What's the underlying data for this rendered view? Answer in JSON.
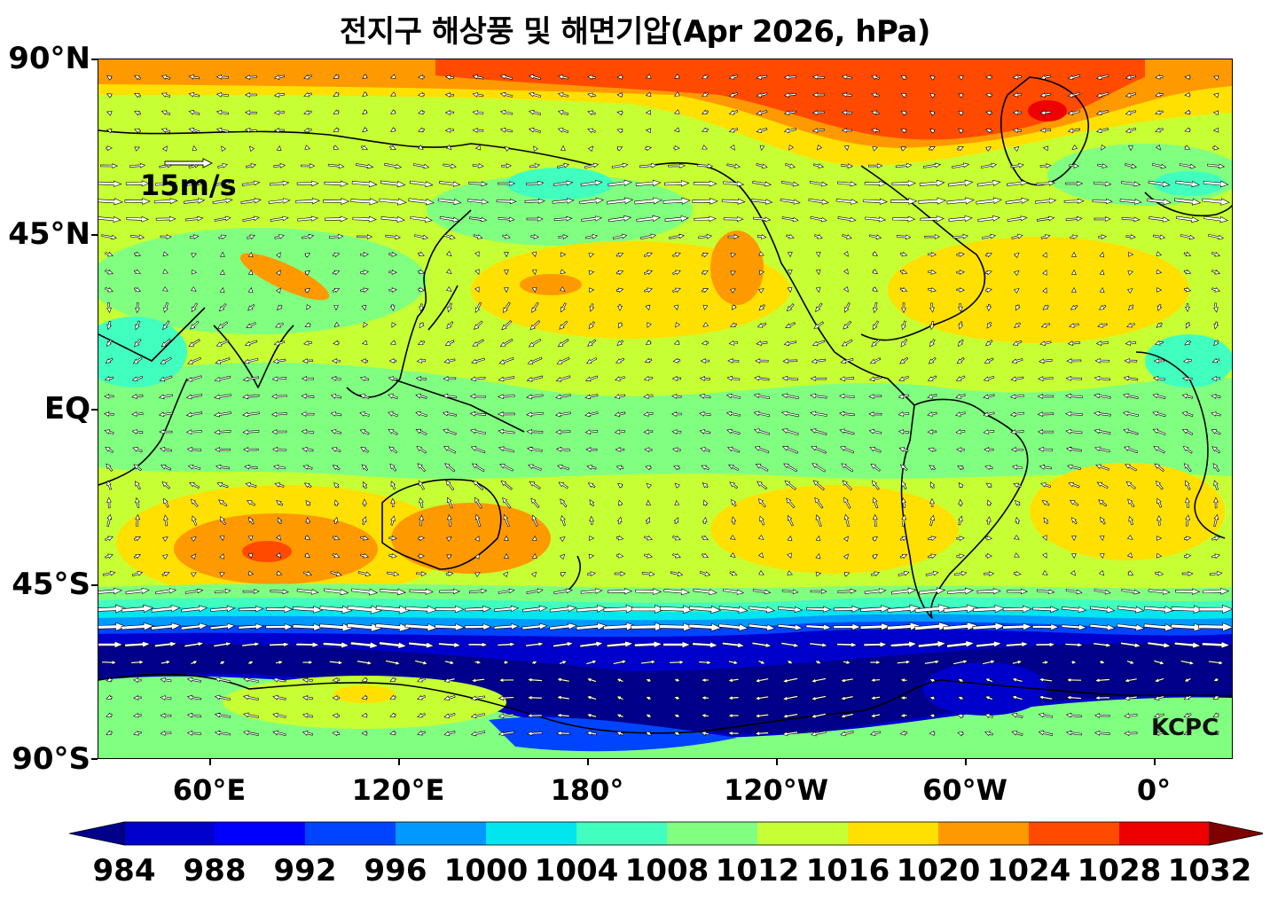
{
  "title": "전지구 해상풍 및 해면기압(Apr 2026, hPa)",
  "axes": {
    "lat_labels": [
      "90°N",
      "45°N",
      "EQ",
      "45°S",
      "90°S"
    ],
    "lon_labels": [
      "60°E",
      "120°E",
      "180°",
      "120°W",
      "60°W",
      "0°"
    ]
  },
  "wind_scale": {
    "label": "15m/s",
    "speed": 15
  },
  "credit": "KCPC",
  "colorbar": {
    "levels": [
      "984",
      "988",
      "992",
      "996",
      "1000",
      "1004",
      "1008",
      "1012",
      "1016",
      "1020",
      "1024",
      "1028",
      "1032"
    ],
    "colors": [
      "#00008b",
      "#0000cd",
      "#0000ff",
      "#0044ff",
      "#0099ff",
      "#00e5ee",
      "#40ffbf",
      "#80ff80",
      "#c6ff33",
      "#ffe000",
      "#ff9900",
      "#ff4a00",
      "#ee0000",
      "#800000"
    ],
    "extend": "both"
  },
  "map": {
    "projection": "equirectangular, centered 180°",
    "field": "sea-level pressure (hPa) with surface wind vectors",
    "colors": {
      "background": "#c6ff33",
      "ocean_low": "#80ff80",
      "high": "#ffe000",
      "higher": "#ff9900",
      "highest": "#ff4a00",
      "southern_ocean": "#0000cd",
      "deep_low": "#00008b",
      "ring1": "#0099ff",
      "ring2": "#00e5ee",
      "ring3": "#40ffbf"
    }
  }
}
